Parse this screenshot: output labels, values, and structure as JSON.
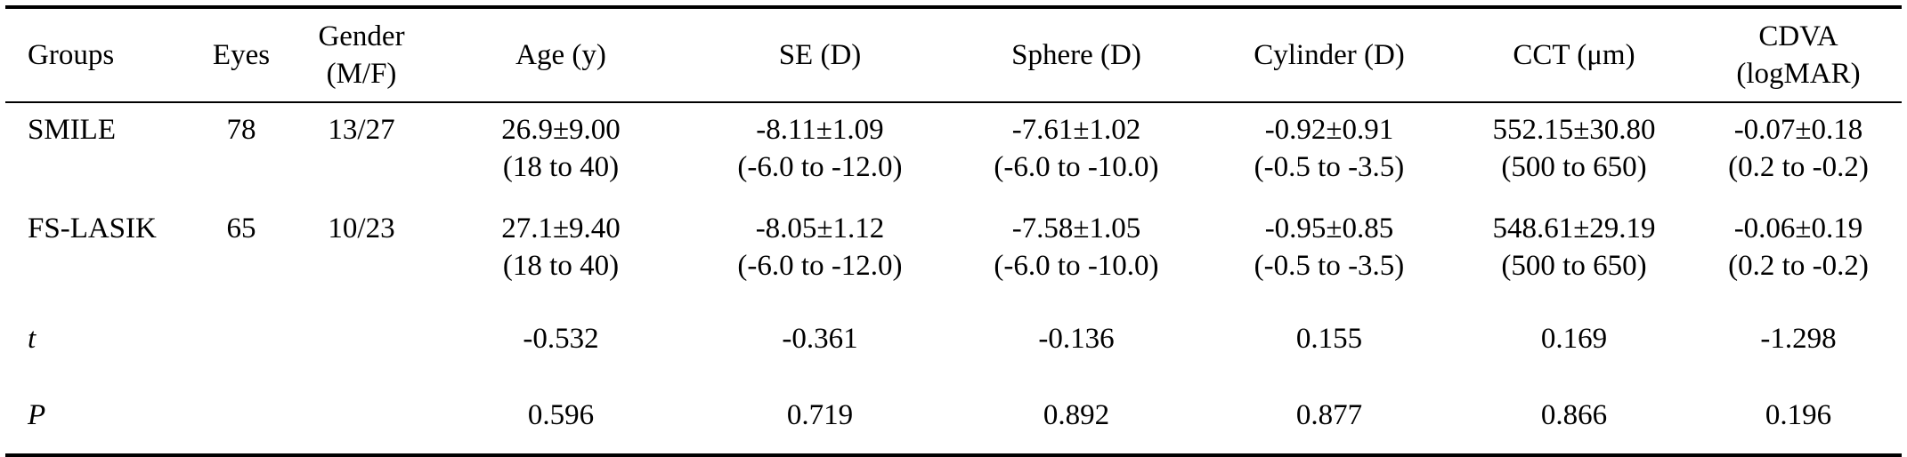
{
  "table": {
    "headers": [
      [
        "Groups"
      ],
      [
        "Eyes"
      ],
      [
        "Gender",
        "(M/F)"
      ],
      [
        "Age (y)"
      ],
      [
        "SE (D)"
      ],
      [
        "Sphere (D)"
      ],
      [
        "Cylinder (D)"
      ],
      [
        "CCT (μm)"
      ],
      [
        "CDVA",
        "(logMAR)"
      ]
    ],
    "rows": [
      {
        "group": "SMILE",
        "eyes": "78",
        "gender": "13/27",
        "age": [
          "26.9±9.00",
          "(18 to 40)"
        ],
        "se": [
          "-8.11±1.09",
          "(-6.0 to -12.0)"
        ],
        "sphere": [
          "-7.61±1.02",
          "(-6.0 to -10.0)"
        ],
        "cylinder": [
          "-0.92±0.91",
          "(-0.5 to -3.5)"
        ],
        "cct": [
          "552.15±30.80",
          "(500 to 650)"
        ],
        "cdva": [
          "-0.07±0.18",
          "(0.2 to -0.2)"
        ]
      },
      {
        "group": "FS-LASIK",
        "eyes": "65",
        "gender": "10/23",
        "age": [
          "27.1±9.40",
          "(18 to 40)"
        ],
        "se": [
          "-8.05±1.12",
          "(-6.0 to -12.0)"
        ],
        "sphere": [
          "-7.58±1.05",
          "(-6.0 to -10.0)"
        ],
        "cylinder": [
          "-0.95±0.85",
          "(-0.5 to -3.5)"
        ],
        "cct": [
          "548.61±29.19",
          "(500 to 650)"
        ],
        "cdva": [
          "-0.06±0.19",
          "(0.2 to -0.2)"
        ]
      }
    ],
    "stats": [
      {
        "label": "t",
        "eyes": "",
        "gender": "",
        "age": "-0.532",
        "se": "-0.361",
        "sphere": "-0.136",
        "cylinder": "0.155",
        "cct": "0.169",
        "cdva": "-1.298"
      },
      {
        "label": "P",
        "eyes": "",
        "gender": "",
        "age": "0.596",
        "se": "0.719",
        "sphere": "0.892",
        "cylinder": "0.877",
        "cct": "0.866",
        "cdva": "0.196"
      }
    ]
  }
}
